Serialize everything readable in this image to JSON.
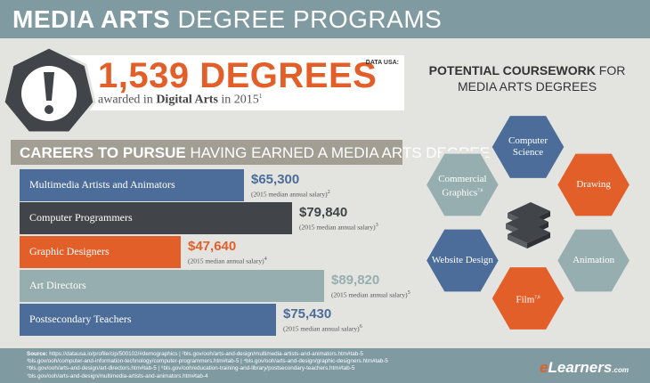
{
  "header": {
    "title_bold": "MEDIA ARTS",
    "title_light": "DEGREE PROGRAMS"
  },
  "degrees": {
    "number": "1,539 DEGREES",
    "sub_prefix": "awarded in ",
    "sub_field": "Digital Arts",
    "sub_suffix": " in 2015",
    "sub_ref": "1",
    "source_tag": "DATA USA:"
  },
  "careers": {
    "banner_bold": "CAREERS TO PURSUE",
    "banner_rest": " HAVING EARNED A MEDIA ARTS DEGREE",
    "items": [
      {
        "label": "Multimedia Artists and Animators",
        "salary": "$65,300",
        "note": "(2015 median annual salary)",
        "ref": "2",
        "color": "#4c6d9a",
        "amt_color": "#4c6d9a"
      },
      {
        "label": "Computer Programmers",
        "salary": "$79,840",
        "note": "(2015 median annual salary)",
        "ref": "3",
        "color": "#414449",
        "amt_color": "#414449"
      },
      {
        "label": "Graphic Designers",
        "salary": "$47,640",
        "note": "(2015 median annual salary)",
        "ref": "4",
        "color": "#e35f2a",
        "amt_color": "#e35f2a"
      },
      {
        "label": "Art Directors",
        "salary": "$89,820",
        "note": "(2015 median annual salary)",
        "ref": "5",
        "color": "#97aeb0",
        "amt_color": "#97aeb0"
      },
      {
        "label": "Postsecondary Teachers",
        "salary": "$75,430",
        "note": "(2015 median annual salary)",
        "ref": "6",
        "color": "#4c6d9a",
        "amt_color": "#4c6d9a"
      }
    ]
  },
  "coursework": {
    "title_bold": "POTENTIAL COURSEWORK",
    "title_rest": " FOR",
    "title_line2": "MEDIA ARTS DEGREES",
    "courses": [
      {
        "label_line1": "Computer",
        "label_line2": "Science",
        "ref": "",
        "color": "#4c6d9a"
      },
      {
        "label_line1": "Drawing",
        "label_line2": "",
        "ref": "",
        "color": "#e35f2a"
      },
      {
        "label_line1": "Animation",
        "label_line2": "",
        "ref": "",
        "color": "#97aeb0"
      },
      {
        "label_line1": "Film",
        "label_line2": "",
        "ref": "7,8",
        "color": "#e35f2a"
      },
      {
        "label_line1": "Website Design",
        "label_line2": "",
        "ref": "",
        "color": "#4c6d9a"
      },
      {
        "label_line1": "Commercial",
        "label_line2": "Graphics",
        "ref": "7,8",
        "color": "#97aeb0"
      }
    ],
    "center_icon": "books-stack-icon"
  },
  "footer": {
    "source_label": "Source:",
    "lines": [
      " https://datausa.io/profile/cip/500102/#demographics  |  ²bls.gov/ooh/arts-and-design/multimedia-artists-and-animators.htm#tab-5",
      "³bls.gov/ooh/computer-and-information-technology/computer-programmers.htm#tab-5  |  ⁴bls.gov/ooh/arts-and-design/graphic-designers.htm#tab-5",
      "⁵bls.gov/ooh/arts-and-design/art-directors.htm#tab-5  |  ⁶bls.gov/ooh/education-training-and-library/postsecondary-teachers.htm#tab-5",
      "⁷bls.gov/ooh/arts-and-design/multimedia-artists-and-animators.htm#tab-4"
    ],
    "brand_e": "e",
    "brand_rest": "Learners",
    "brand_com": ".com"
  },
  "colors": {
    "blue": "#4c6d9a",
    "dark": "#414449",
    "orange": "#e35f2a",
    "teal": "#97aeb0",
    "header": "#7f9aa0"
  }
}
